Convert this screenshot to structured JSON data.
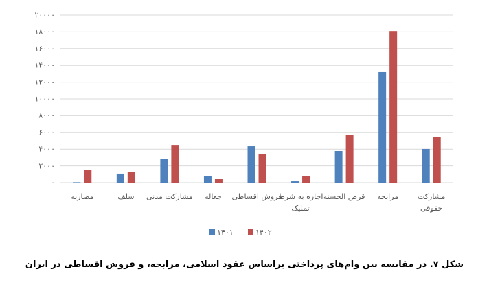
{
  "chart_data": {
    "type": "bar",
    "caption": "شکل ۷. در مقایسه بین وام‌های پرداختی براساس عقود اسلامی، مرابحه، و فروش اقساطی در ایران",
    "categories": [
      "مضاربه",
      "سلف",
      "مشارکت مدنی",
      "جعاله",
      "فروش اقساطی",
      "اجاره به شرط\nتملیک",
      "قرض الحسنه",
      "مرابحه",
      "مشارکت\nحقوقی"
    ],
    "series": [
      {
        "name": "۱۴۰۱",
        "color": "#4f81bd",
        "values": [
          50,
          1070,
          2800,
          740,
          4340,
          160,
          3770,
          13200,
          4020
        ]
      },
      {
        "name": "۱۴۰۲",
        "color": "#c0504d",
        "values": [
          1500,
          1230,
          4500,
          410,
          3360,
          740,
          5660,
          18100,
          5410
        ]
      }
    ],
    "ylim": [
      0,
      20000
    ],
    "yticks": [
      {
        "value": 0,
        "label": "۰"
      },
      {
        "value": 2000,
        "label": "۲۰۰۰"
      },
      {
        "value": 4000,
        "label": "۴۰۰۰"
      },
      {
        "value": 6000,
        "label": "۶۰۰۰"
      },
      {
        "value": 8000,
        "label": "۸۰۰۰"
      },
      {
        "value": 10000,
        "label": "۱۰۰۰۰"
      },
      {
        "value": 12000,
        "label": "۱۲۰۰۰"
      },
      {
        "value": 14000,
        "label": "۱۴۰۰۰"
      },
      {
        "value": 16000,
        "label": "۱۶۰۰۰"
      },
      {
        "value": 18000,
        "label": "۱۸۰۰۰"
      },
      {
        "value": 20000,
        "label": "۲۰۰۰۰"
      }
    ],
    "grid": true,
    "legend": "bottom"
  }
}
